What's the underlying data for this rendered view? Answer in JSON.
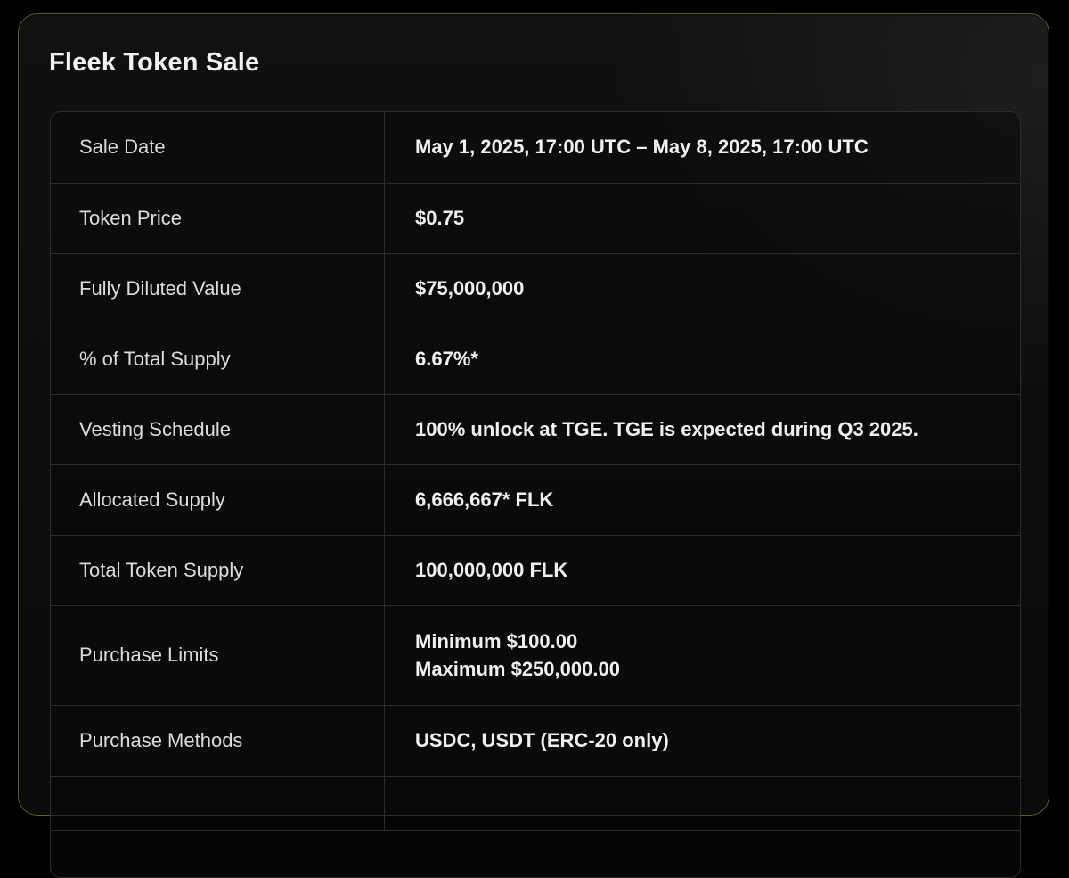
{
  "title": "Fleek Token Sale",
  "rows": [
    {
      "label": "Sale Date",
      "value": "May 1, 2025, 17:00 UTC – May 8, 2025, 17:00 UTC"
    },
    {
      "label": "Token Price",
      "value": "$0.75"
    },
    {
      "label": "Fully Diluted Value",
      "value": "$75,000,000"
    },
    {
      "label": "% of Total Supply",
      "value": "6.67%*"
    },
    {
      "label": "Vesting Schedule",
      "value": "100% unlock at TGE. TGE is expected during Q3 2025."
    },
    {
      "label": "Allocated Supply",
      "value": "6,666,667* FLK"
    },
    {
      "label": "Total Token Supply",
      "value": "100,000,000 FLK"
    },
    {
      "label": "Purchase Limits",
      "value_lines": [
        "Minimum $100.00",
        "Maximum $250,000.00"
      ]
    },
    {
      "label": "Purchase Methods",
      "value": "USDC, USDT (ERC-20 only)"
    }
  ],
  "colors": {
    "background": "#000000",
    "card_border": "#6b5a2c",
    "grid_line": "#2c2c2c",
    "text": "#f0f0f0"
  }
}
